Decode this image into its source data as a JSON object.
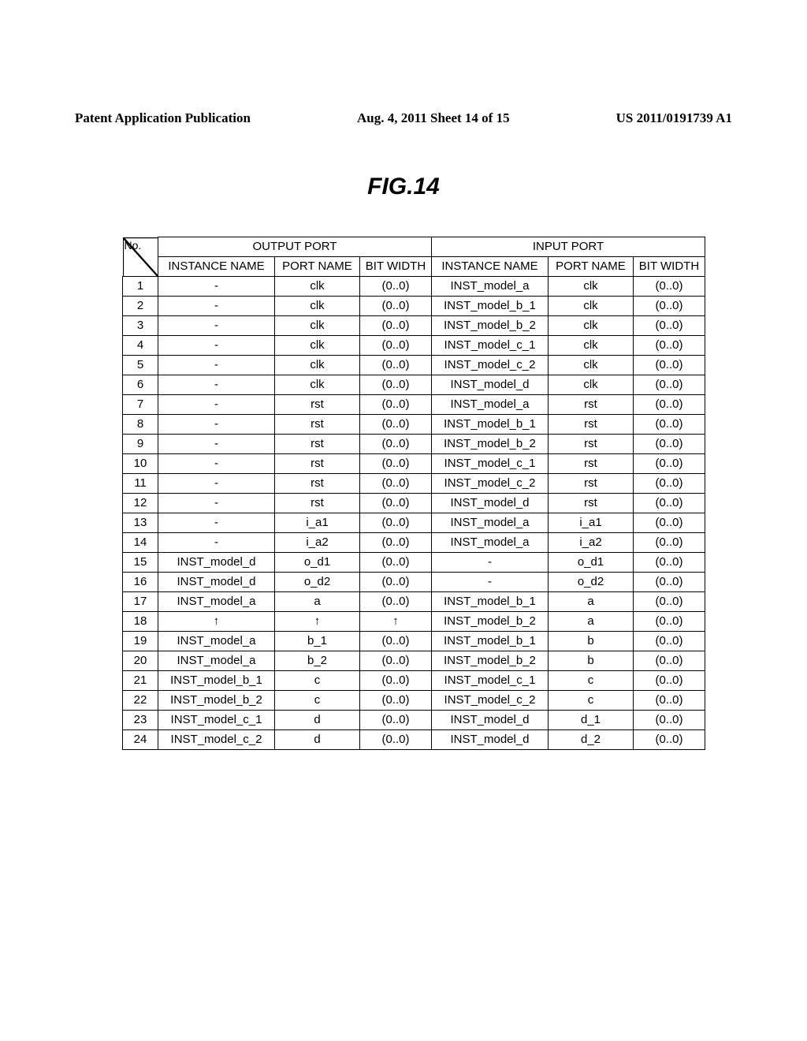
{
  "header": {
    "left": "Patent Application Publication",
    "center": "Aug. 4, 2011  Sheet 14 of 15",
    "right": "US 2011/0191739 A1"
  },
  "figure_title": "FIG.14",
  "table": {
    "no_label": "No.",
    "groups": [
      "OUTPUT PORT",
      "INPUT PORT"
    ],
    "columns": [
      "INSTANCE NAME",
      "PORT NAME",
      "BIT WIDTH",
      "INSTANCE NAME",
      "PORT NAME",
      "BIT WIDTH"
    ],
    "rows": [
      {
        "no": "1",
        "oi": "-",
        "op": "clk",
        "ob": "(0..0)",
        "ii": "INST_model_a",
        "ip": "clk",
        "ib": "(0..0)"
      },
      {
        "no": "2",
        "oi": "-",
        "op": "clk",
        "ob": "(0..0)",
        "ii": "INST_model_b_1",
        "ip": "clk",
        "ib": "(0..0)"
      },
      {
        "no": "3",
        "oi": "-",
        "op": "clk",
        "ob": "(0..0)",
        "ii": "INST_model_b_2",
        "ip": "clk",
        "ib": "(0..0)"
      },
      {
        "no": "4",
        "oi": "-",
        "op": "clk",
        "ob": "(0..0)",
        "ii": "INST_model_c_1",
        "ip": "clk",
        "ib": "(0..0)"
      },
      {
        "no": "5",
        "oi": "-",
        "op": "clk",
        "ob": "(0..0)",
        "ii": "INST_model_c_2",
        "ip": "clk",
        "ib": "(0..0)"
      },
      {
        "no": "6",
        "oi": "-",
        "op": "clk",
        "ob": "(0..0)",
        "ii": "INST_model_d",
        "ip": "clk",
        "ib": "(0..0)"
      },
      {
        "no": "7",
        "oi": "-",
        "op": "rst",
        "ob": "(0..0)",
        "ii": "INST_model_a",
        "ip": "rst",
        "ib": "(0..0)"
      },
      {
        "no": "8",
        "oi": "-",
        "op": "rst",
        "ob": "(0..0)",
        "ii": "INST_model_b_1",
        "ip": "rst",
        "ib": "(0..0)"
      },
      {
        "no": "9",
        "oi": "-",
        "op": "rst",
        "ob": "(0..0)",
        "ii": "INST_model_b_2",
        "ip": "rst",
        "ib": "(0..0)"
      },
      {
        "no": "10",
        "oi": "-",
        "op": "rst",
        "ob": "(0..0)",
        "ii": "INST_model_c_1",
        "ip": "rst",
        "ib": "(0..0)"
      },
      {
        "no": "11",
        "oi": "-",
        "op": "rst",
        "ob": "(0..0)",
        "ii": "INST_model_c_2",
        "ip": "rst",
        "ib": "(0..0)"
      },
      {
        "no": "12",
        "oi": "-",
        "op": "rst",
        "ob": "(0..0)",
        "ii": "INST_model_d",
        "ip": "rst",
        "ib": "(0..0)"
      },
      {
        "no": "13",
        "oi": "-",
        "op": "i_a1",
        "ob": "(0..0)",
        "ii": "INST_model_a",
        "ip": "i_a1",
        "ib": "(0..0)"
      },
      {
        "no": "14",
        "oi": "-",
        "op": "i_a2",
        "ob": "(0..0)",
        "ii": "INST_model_a",
        "ip": "i_a2",
        "ib": "(0..0)"
      },
      {
        "no": "15",
        "oi": "INST_model_d",
        "op": "o_d1",
        "ob": "(0..0)",
        "ii": "-",
        "ip": "o_d1",
        "ib": "(0..0)"
      },
      {
        "no": "16",
        "oi": "INST_model_d",
        "op": "o_d2",
        "ob": "(0..0)",
        "ii": "-",
        "ip": "o_d2",
        "ib": "(0..0)"
      },
      {
        "no": "17",
        "oi": "INST_model_a",
        "op": "a",
        "ob": "(0..0)",
        "ii": "INST_model_b_1",
        "ip": "a",
        "ib": "(0..0)"
      },
      {
        "no": "18",
        "oi": "↑",
        "op": "↑",
        "ob": "↑",
        "ii": "INST_model_b_2",
        "ip": "a",
        "ib": "(0..0)"
      },
      {
        "no": "19",
        "oi": "INST_model_a",
        "op": "b_1",
        "ob": "(0..0)",
        "ii": "INST_model_b_1",
        "ip": "b",
        "ib": "(0..0)"
      },
      {
        "no": "20",
        "oi": "INST_model_a",
        "op": "b_2",
        "ob": "(0..0)",
        "ii": "INST_model_b_2",
        "ip": "b",
        "ib": "(0..0)"
      },
      {
        "no": "21",
        "oi": "INST_model_b_1",
        "op": "c",
        "ob": "(0..0)",
        "ii": "INST_model_c_1",
        "ip": "c",
        "ib": "(0..0)"
      },
      {
        "no": "22",
        "oi": "INST_model_b_2",
        "op": "c",
        "ob": "(0..0)",
        "ii": "INST_model_c_2",
        "ip": "c",
        "ib": "(0..0)"
      },
      {
        "no": "23",
        "oi": "INST_model_c_1",
        "op": "d",
        "ob": "(0..0)",
        "ii": "INST_model_d",
        "ip": "d_1",
        "ib": "(0..0)"
      },
      {
        "no": "24",
        "oi": "INST_model_c_2",
        "op": "d",
        "ob": "(0..0)",
        "ii": "INST_model_d",
        "ip": "d_2",
        "ib": "(0..0)"
      }
    ]
  }
}
